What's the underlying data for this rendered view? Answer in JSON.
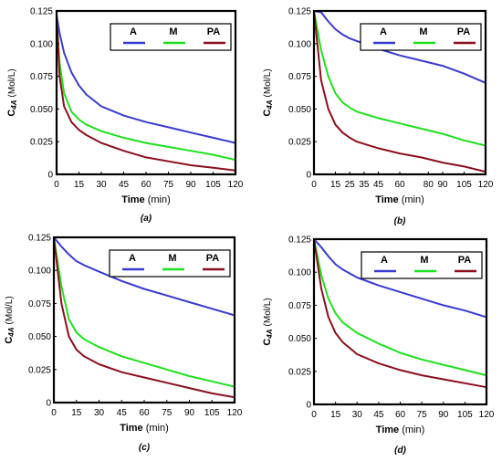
{
  "figure": {
    "panels": [
      {
        "caption": "(a)"
      },
      {
        "caption": "(b)"
      },
      {
        "caption": "(c)"
      },
      {
        "caption": "(d)"
      }
    ],
    "legend": [
      {
        "label": "A",
        "color": "#3a3ad0"
      },
      {
        "label": "M",
        "color": "#1fe01f"
      },
      {
        "label": "PA",
        "color": "#8a0f1e"
      }
    ]
  },
  "chart_data": [
    {
      "type": "line",
      "caption": "(a)",
      "xlabel": "Time",
      "xlabel_unit": "(min)",
      "ylabel_main": "C",
      "ylabel_sub": "4A",
      "ylabel_unit": "(Mol/L)",
      "xlim": [
        0,
        120
      ],
      "ylim": [
        0,
        0.125
      ],
      "xticks": [
        0,
        15,
        30,
        45,
        60,
        75,
        90,
        105,
        120
      ],
      "yticks": [
        0,
        0.025,
        0.05,
        0.075,
        0.1,
        0.125
      ],
      "ytick_labels": [
        "0",
        "0.025",
        "0.050",
        "0.075",
        "0.100",
        "0.125"
      ],
      "grid": false,
      "legend_position": "top-right",
      "x": [
        0,
        2,
        5,
        10,
        15,
        20,
        30,
        45,
        60,
        75,
        90,
        105,
        120
      ],
      "series": [
        {
          "name": "A",
          "values": [
            0.122,
            0.108,
            0.093,
            0.078,
            0.068,
            0.061,
            0.052,
            0.045,
            0.04,
            0.036,
            0.032,
            0.028,
            0.024
          ]
        },
        {
          "name": "M",
          "values": [
            0.122,
            0.085,
            0.062,
            0.048,
            0.042,
            0.038,
            0.033,
            0.028,
            0.024,
            0.021,
            0.018,
            0.015,
            0.011
          ]
        },
        {
          "name": "PA",
          "values": [
            0.122,
            0.075,
            0.052,
            0.04,
            0.034,
            0.03,
            0.024,
            0.018,
            0.013,
            0.01,
            0.007,
            0.005,
            0.003
          ]
        }
      ]
    },
    {
      "type": "line",
      "caption": "(b)",
      "xlabel": "Time",
      "xlabel_unit": "(min)",
      "ylabel_main": "C",
      "ylabel_sub": "4A",
      "ylabel_unit": "(Mol/L)",
      "xlim": [
        0,
        120
      ],
      "ylim": [
        0,
        0.125
      ],
      "xticks": [
        0,
        15,
        25,
        35,
        45,
        60,
        80,
        90,
        105,
        120
      ],
      "yticks": [
        0,
        0.025,
        0.05,
        0.075,
        0.1,
        0.125
      ],
      "ytick_labels": [
        "0",
        "0.025",
        "0.050",
        "0.075",
        "0.100",
        "0.125"
      ],
      "grid": false,
      "legend_position": "top-right",
      "x": [
        0,
        5,
        10,
        15,
        20,
        25,
        30,
        45,
        60,
        75,
        90,
        105,
        120
      ],
      "series": [
        {
          "name": "A",
          "values": [
            0.125,
            0.124,
            0.117,
            0.111,
            0.107,
            0.104,
            0.102,
            0.096,
            0.091,
            0.087,
            0.083,
            0.077,
            0.07
          ]
        },
        {
          "name": "M",
          "values": [
            0.125,
            0.095,
            0.075,
            0.062,
            0.055,
            0.051,
            0.048,
            0.043,
            0.039,
            0.035,
            0.031,
            0.026,
            0.022
          ]
        },
        {
          "name": "PA",
          "values": [
            0.125,
            0.072,
            0.05,
            0.038,
            0.032,
            0.028,
            0.025,
            0.02,
            0.016,
            0.013,
            0.009,
            0.006,
            0.002
          ]
        }
      ]
    },
    {
      "type": "line",
      "caption": "(c)",
      "xlabel": "Time",
      "xlabel_unit": "(min)",
      "ylabel_main": "C",
      "ylabel_sub": "4A",
      "ylabel_unit": "(Mol/L)",
      "xlim": [
        0,
        120
      ],
      "ylim": [
        0,
        0.125
      ],
      "xticks": [
        0,
        15,
        30,
        45,
        60,
        75,
        90,
        105,
        120
      ],
      "yticks": [
        0,
        0.025,
        0.05,
        0.075,
        0.1,
        0.125
      ],
      "ytick_labels": [
        "0",
        "0.025",
        "0.050",
        "0.075",
        "0.100",
        "0.125"
      ],
      "grid": false,
      "legend_position": "top-right",
      "x": [
        0,
        5,
        10,
        15,
        20,
        30,
        45,
        60,
        75,
        90,
        105,
        120
      ],
      "series": [
        {
          "name": "A",
          "values": [
            0.125,
            0.118,
            0.112,
            0.107,
            0.104,
            0.099,
            0.092,
            0.086,
            0.081,
            0.076,
            0.071,
            0.066
          ]
        },
        {
          "name": "M",
          "values": [
            0.125,
            0.088,
            0.063,
            0.053,
            0.048,
            0.042,
            0.035,
            0.03,
            0.025,
            0.02,
            0.016,
            0.012
          ]
        },
        {
          "name": "PA",
          "values": [
            0.125,
            0.075,
            0.05,
            0.04,
            0.035,
            0.029,
            0.023,
            0.019,
            0.015,
            0.011,
            0.007,
            0.004
          ]
        }
      ]
    },
    {
      "type": "line",
      "caption": "(d)",
      "xlabel": "Time",
      "xlabel_unit": "(min)",
      "ylabel_main": "C",
      "ylabel_sub": "4A",
      "ylabel_unit": "(Mol/L)",
      "xlim": [
        0,
        120
      ],
      "ylim": [
        0,
        0.125
      ],
      "xticks": [
        0,
        15,
        30,
        45,
        60,
        75,
        90,
        105,
        120
      ],
      "yticks": [
        0,
        0.025,
        0.05,
        0.075,
        0.1,
        0.125
      ],
      "ytick_labels": [
        "0",
        "0.025",
        "0.050",
        "0.075",
        "0.100",
        "0.125"
      ],
      "grid": false,
      "legend_position": "top-right",
      "x": [
        0,
        5,
        10,
        15,
        20,
        30,
        45,
        60,
        75,
        90,
        105,
        120
      ],
      "series": [
        {
          "name": "A",
          "values": [
            0.125,
            0.119,
            0.112,
            0.106,
            0.102,
            0.096,
            0.09,
            0.085,
            0.08,
            0.075,
            0.071,
            0.066
          ]
        },
        {
          "name": "M",
          "values": [
            0.125,
            0.098,
            0.08,
            0.069,
            0.062,
            0.054,
            0.046,
            0.039,
            0.034,
            0.03,
            0.026,
            0.022
          ]
        },
        {
          "name": "PA",
          "values": [
            0.125,
            0.088,
            0.066,
            0.054,
            0.047,
            0.038,
            0.031,
            0.026,
            0.022,
            0.019,
            0.016,
            0.013
          ]
        }
      ]
    }
  ]
}
